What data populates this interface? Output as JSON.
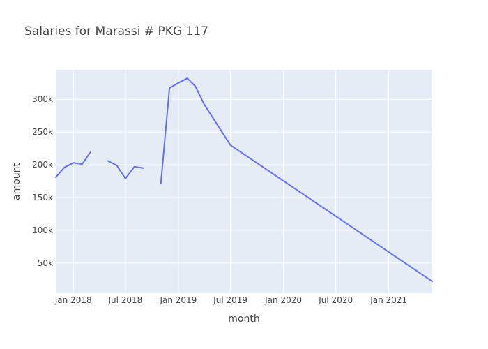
{
  "chart_data": {
    "type": "line",
    "title": "Salaries for Marassi # PKG 117",
    "xlabel": "month",
    "ylabel": "amount",
    "grid": true,
    "legend": "none",
    "colors": {
      "line": "#636efa",
      "plot_bg": "#e5ecf6",
      "grid": "#ffffff"
    },
    "xlim": [
      "2017-11-01",
      "2021-06-01"
    ],
    "ylim": [
      4000,
      345000
    ],
    "x_ticks": [
      {
        "date": "2018-01-01",
        "label": "Jan 2018"
      },
      {
        "date": "2018-07-01",
        "label": "Jul 2018"
      },
      {
        "date": "2019-01-01",
        "label": "Jan 2019"
      },
      {
        "date": "2019-07-01",
        "label": "Jul 2019"
      },
      {
        "date": "2020-01-01",
        "label": "Jan 2020"
      },
      {
        "date": "2020-07-01",
        "label": "Jul 2020"
      },
      {
        "date": "2021-01-01",
        "label": "Jan 2021"
      }
    ],
    "y_ticks": [
      {
        "value": 50000,
        "label": "50k"
      },
      {
        "value": 100000,
        "label": "100k"
      },
      {
        "value": 150000,
        "label": "150k"
      },
      {
        "value": 200000,
        "label": "200k"
      },
      {
        "value": 250000,
        "label": "250k"
      },
      {
        "value": 300000,
        "label": "300k"
      }
    ],
    "series": [
      {
        "segments": [
          [
            {
              "x": "2017-11-01",
              "y": 181000
            },
            {
              "x": "2017-12-01",
              "y": 196000
            },
            {
              "x": "2018-01-01",
              "y": 203000
            },
            {
              "x": "2018-02-01",
              "y": 201000
            },
            {
              "x": "2018-03-01",
              "y": 219000
            }
          ],
          [
            {
              "x": "2018-05-01",
              "y": 206000
            },
            {
              "x": "2018-06-01",
              "y": 199000
            },
            {
              "x": "2018-07-01",
              "y": 179000
            },
            {
              "x": "2018-08-01",
              "y": 197000
            },
            {
              "x": "2018-09-01",
              "y": 195000
            }
          ],
          [
            {
              "x": "2018-11-01",
              "y": 171000
            },
            {
              "x": "2018-12-01",
              "y": 317000
            },
            {
              "x": "2019-01-01",
              "y": 325000
            },
            {
              "x": "2019-02-01",
              "y": 332000
            },
            {
              "x": "2019-03-01",
              "y": 320000
            },
            {
              "x": "2019-04-01",
              "y": 292000
            },
            {
              "x": "2019-07-01",
              "y": 230000
            },
            {
              "x": "2021-06-01",
              "y": 22000
            }
          ]
        ]
      }
    ]
  }
}
